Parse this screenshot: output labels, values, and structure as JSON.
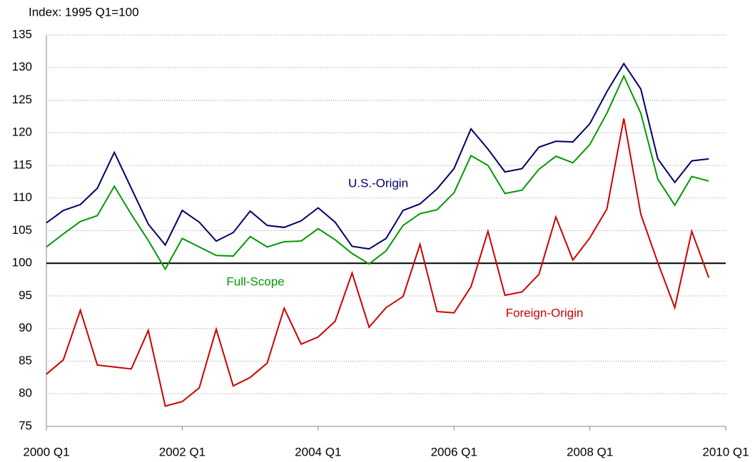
{
  "chart_data": {
    "type": "line",
    "ylabel": "Index: 1995 Q1=100",
    "categories": [
      "2000 Q1",
      null,
      null,
      null,
      null,
      null,
      null,
      null,
      "2002 Q1",
      null,
      null,
      null,
      null,
      null,
      null,
      null,
      "2004 Q1",
      null,
      null,
      null,
      null,
      null,
      null,
      null,
      "2006 Q1",
      null,
      null,
      null,
      null,
      null,
      null,
      null,
      "2008 Q1",
      null,
      null,
      null,
      null,
      null,
      null,
      null,
      "2010 Q1"
    ],
    "series": [
      {
        "name": "U.S.-Origin",
        "color": "#000066",
        "values": [
          106.2,
          108.1,
          109,
          111.5,
          117,
          111.5,
          106,
          102.8,
          108.1,
          106.3,
          103.4,
          104.7,
          108,
          105.8,
          105.5,
          106.5,
          108.5,
          106.3,
          102.6,
          102.2,
          103.8,
          108.1,
          109.1,
          111.4,
          114.5,
          120.6,
          117.5,
          114,
          114.5,
          117.8,
          118.7,
          118.6,
          121.4,
          126.3,
          130.6,
          126.7,
          116,
          112.4,
          115.7,
          116,
          null
        ]
      },
      {
        "name": "Full-Scope",
        "color": "#009900",
        "values": [
          102.5,
          104.5,
          106.4,
          107.3,
          111.8,
          107.5,
          103.5,
          99.1,
          103.8,
          102.5,
          101.2,
          101.1,
          104.1,
          102.5,
          103.3,
          103.4,
          105.3,
          103.6,
          101.5,
          99.9,
          101.9,
          105.8,
          107.6,
          108.2,
          110.8,
          116.5,
          115,
          110.7,
          111.2,
          114.4,
          116.4,
          115.4,
          118.2,
          123,
          128.7,
          123,
          112.9,
          108.9,
          113.3,
          112.6,
          null
        ]
      },
      {
        "name": "Foreign-Origin",
        "color": "#cc0000",
        "values": [
          83,
          85.2,
          92.8,
          84.4,
          84.1,
          83.8,
          89.7,
          78.1,
          78.8,
          80.9,
          89.9,
          81.2,
          82.5,
          84.7,
          93.1,
          87.6,
          88.7,
          91.1,
          98.5,
          90.2,
          93.2,
          94.9,
          102.9,
          92.6,
          92.4,
          96.4,
          104.9,
          95.1,
          95.6,
          98.3,
          107.1,
          100.5,
          103.9,
          108.3,
          122.2,
          107.5,
          100.1,
          93.2,
          104.9,
          97.8,
          null
        ]
      }
    ],
    "reference_line": 100,
    "ylim": [
      75,
      135
    ],
    "yticks": [
      75,
      80,
      85,
      90,
      95,
      100,
      105,
      110,
      115,
      120,
      125,
      130,
      135
    ],
    "grid": true
  }
}
